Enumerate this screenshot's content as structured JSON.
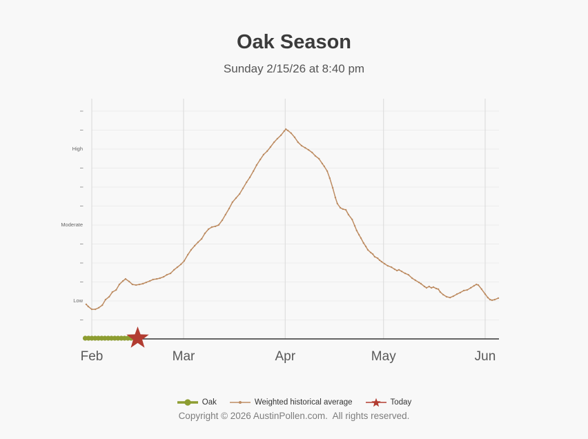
{
  "header": {
    "title": "Oak Season",
    "subtitle": "Sunday 2/15/26 at 8:40 pm"
  },
  "chart_data": {
    "type": "line",
    "title": "Oak Season",
    "subtitle": "Sunday 2/15/26 at 8:40 pm",
    "x_axis": {
      "unit": "days from Feb 1",
      "range": [
        -2,
        124
      ],
      "months": [
        {
          "label": "Feb",
          "day": 0
        },
        {
          "label": "Mar",
          "day": 28
        },
        {
          "label": "Apr",
          "day": 59
        },
        {
          "label": "May",
          "day": 89
        },
        {
          "label": "Jun",
          "day": 120
        }
      ]
    },
    "y_axis": {
      "range": [
        0,
        12.65
      ],
      "grid": true,
      "levels": [
        {
          "label": "Low",
          "value": 2
        },
        {
          "label": "Moderate",
          "value": 6
        },
        {
          "label": "High",
          "value": 10
        }
      ],
      "minor_ticks": [
        1,
        3,
        4,
        5,
        7,
        8,
        9,
        11,
        12
      ]
    },
    "series": [
      {
        "id": "oak",
        "name": "Oak",
        "type": "scatter",
        "color": "#8d9d31",
        "points": [
          [
            -2,
            0
          ],
          [
            -1,
            0
          ],
          [
            0,
            0
          ],
          [
            1,
            0
          ],
          [
            2,
            0
          ],
          [
            3,
            0
          ],
          [
            4,
            0
          ],
          [
            5,
            0
          ],
          [
            6,
            0
          ],
          [
            7,
            0
          ],
          [
            8,
            0
          ],
          [
            9,
            0
          ],
          [
            10,
            0
          ],
          [
            11,
            0
          ],
          [
            12,
            0
          ],
          [
            13,
            0
          ]
        ]
      },
      {
        "id": "wha",
        "name": "Weighted historical average",
        "type": "line",
        "color": "#bd8c62",
        "points": [
          [
            -1.7,
            1.82
          ],
          [
            -1.1,
            1.71
          ],
          [
            0,
            1.56
          ],
          [
            1.1,
            1.56
          ],
          [
            2.1,
            1.64
          ],
          [
            3.2,
            1.78
          ],
          [
            4.2,
            2.07
          ],
          [
            5.3,
            2.22
          ],
          [
            6.3,
            2.47
          ],
          [
            7.4,
            2.58
          ],
          [
            8.4,
            2.87
          ],
          [
            9.5,
            3.05
          ],
          [
            10.3,
            3.16
          ],
          [
            11.4,
            3.02
          ],
          [
            12.4,
            2.87
          ],
          [
            13.5,
            2.84
          ],
          [
            14.5,
            2.87
          ],
          [
            15.6,
            2.91
          ],
          [
            16.6,
            2.98
          ],
          [
            17.7,
            3.05
          ],
          [
            18.7,
            3.13
          ],
          [
            19.8,
            3.16
          ],
          [
            20.8,
            3.2
          ],
          [
            21.9,
            3.27
          ],
          [
            22.9,
            3.38
          ],
          [
            24,
            3.45
          ],
          [
            25.1,
            3.64
          ],
          [
            26.1,
            3.78
          ],
          [
            27.2,
            3.93
          ],
          [
            28.2,
            4.11
          ],
          [
            29.3,
            4.44
          ],
          [
            30.3,
            4.69
          ],
          [
            31.4,
            4.91
          ],
          [
            32.4,
            5.09
          ],
          [
            33.5,
            5.27
          ],
          [
            34.5,
            5.56
          ],
          [
            35.6,
            5.78
          ],
          [
            36.6,
            5.89
          ],
          [
            37.7,
            5.93
          ],
          [
            38.7,
            6
          ],
          [
            39.8,
            6.25
          ],
          [
            40.8,
            6.55
          ],
          [
            41.9,
            6.87
          ],
          [
            42.9,
            7.2
          ],
          [
            44,
            7.42
          ],
          [
            45.1,
            7.64
          ],
          [
            46.1,
            7.93
          ],
          [
            47.2,
            8.25
          ],
          [
            48.2,
            8.51
          ],
          [
            49.3,
            8.84
          ],
          [
            50.3,
            9.16
          ],
          [
            51.4,
            9.45
          ],
          [
            52.4,
            9.71
          ],
          [
            53.5,
            9.89
          ],
          [
            54.5,
            10.11
          ],
          [
            55.6,
            10.36
          ],
          [
            56.6,
            10.55
          ],
          [
            57.7,
            10.73
          ],
          [
            58.7,
            10.95
          ],
          [
            59.2,
            11.05
          ],
          [
            59.8,
            10.98
          ],
          [
            60.8,
            10.84
          ],
          [
            61.9,
            10.62
          ],
          [
            62.9,
            10.36
          ],
          [
            64,
            10.18
          ],
          [
            65.1,
            10.07
          ],
          [
            66.1,
            9.96
          ],
          [
            67.2,
            9.82
          ],
          [
            68.2,
            9.64
          ],
          [
            69.3,
            9.49
          ],
          [
            70.3,
            9.24
          ],
          [
            70.9,
            9.09
          ],
          [
            71.8,
            8.84
          ],
          [
            72.6,
            8.47
          ],
          [
            73.5,
            7.96
          ],
          [
            74.3,
            7.45
          ],
          [
            74.9,
            7.13
          ],
          [
            75.8,
            6.91
          ],
          [
            76.6,
            6.84
          ],
          [
            77.5,
            6.8
          ],
          [
            78.3,
            6.55
          ],
          [
            79.4,
            6.29
          ],
          [
            80.2,
            5.96
          ],
          [
            80.8,
            5.71
          ],
          [
            81.5,
            5.49
          ],
          [
            82.1,
            5.31
          ],
          [
            82.9,
            5.05
          ],
          [
            83.6,
            4.87
          ],
          [
            84.2,
            4.69
          ],
          [
            85.1,
            4.55
          ],
          [
            85.7,
            4.47
          ],
          [
            86.3,
            4.33
          ],
          [
            87.2,
            4.25
          ],
          [
            87.8,
            4.15
          ],
          [
            88.4,
            4.07
          ],
          [
            89.3,
            3.96
          ],
          [
            90.3,
            3.85
          ],
          [
            91.4,
            3.78
          ],
          [
            92.4,
            3.67
          ],
          [
            93.1,
            3.6
          ],
          [
            93.7,
            3.64
          ],
          [
            94.5,
            3.56
          ],
          [
            95.6,
            3.45
          ],
          [
            96.6,
            3.38
          ],
          [
            97.7,
            3.2
          ],
          [
            98.7,
            3.09
          ],
          [
            99.8,
            2.98
          ],
          [
            100.4,
            2.91
          ],
          [
            101.5,
            2.76
          ],
          [
            102.1,
            2.69
          ],
          [
            102.9,
            2.76
          ],
          [
            103.6,
            2.69
          ],
          [
            104.2,
            2.73
          ],
          [
            105.1,
            2.65
          ],
          [
            105.7,
            2.62
          ],
          [
            106.3,
            2.47
          ],
          [
            107.2,
            2.33
          ],
          [
            108.2,
            2.22
          ],
          [
            109.3,
            2.18
          ],
          [
            110.3,
            2.25
          ],
          [
            111.4,
            2.36
          ],
          [
            112.4,
            2.44
          ],
          [
            113.5,
            2.55
          ],
          [
            114.5,
            2.58
          ],
          [
            115.6,
            2.69
          ],
          [
            116.6,
            2.8
          ],
          [
            117.3,
            2.87
          ],
          [
            117.9,
            2.84
          ],
          [
            118.9,
            2.62
          ],
          [
            120,
            2.36
          ],
          [
            120.8,
            2.18
          ],
          [
            121.5,
            2.07
          ],
          [
            122.1,
            2.04
          ],
          [
            122.9,
            2.07
          ],
          [
            124,
            2.15
          ]
        ]
      },
      {
        "id": "today",
        "name": "Today",
        "type": "star",
        "color": "#b23c31",
        "points": [
          [
            14,
            0
          ]
        ]
      }
    ]
  },
  "legend": {
    "items": [
      {
        "id": "oak",
        "label": "Oak",
        "marker": "line-circle",
        "color": "#8d9d31"
      },
      {
        "id": "wha",
        "label": "Weighted historical average",
        "marker": "line-dot",
        "color": "#bd8c62"
      },
      {
        "id": "today",
        "label": "Today",
        "marker": "line-star",
        "color": "#b23c31"
      }
    ]
  },
  "footer": {
    "copyright": "Copyright © 2026 AustinPollen.com.  All rights reserved."
  },
  "colors": {
    "background": "#f8f8f8",
    "title": "#3b3b3b",
    "subtitle": "#555555",
    "axis": "#333333",
    "v_grid": "#d9d9d9",
    "h_grid": "#ececec",
    "tick": "#9a9a9a",
    "month_label": "#595959",
    "level_label": "#666666",
    "legend_text": "#333333",
    "copyright": "#7d7d7d",
    "oak_green": "#8d9d31",
    "historical_tan": "#bd8c62",
    "today_red": "#b23c31"
  }
}
